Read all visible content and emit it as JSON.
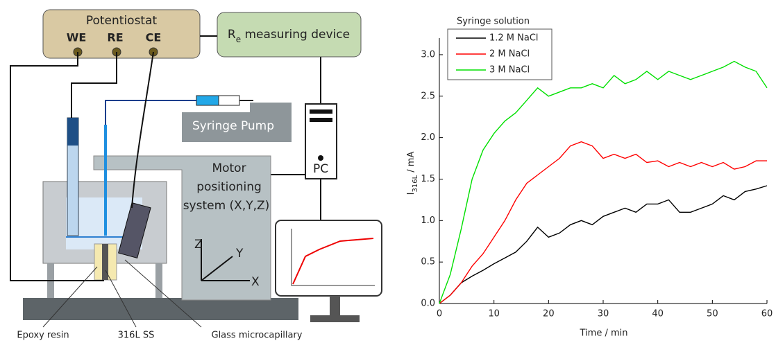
{
  "diagram": {
    "potentiostat": {
      "title": "Potentiostat",
      "terminals": [
        "WE",
        "RE",
        "CE"
      ]
    },
    "re_device": {
      "symbol": "R",
      "subscript": "e",
      "rest": " measuring device"
    },
    "syringe_pump": "Syringe Pump",
    "motor": [
      "Motor",
      "positioning",
      "system (X,Y,Z)"
    ],
    "pc": "PC",
    "axes": [
      "Z",
      "Y",
      "X"
    ],
    "callouts": [
      "Epoxy resin",
      "316L SS",
      "Glass microcapillary"
    ]
  },
  "chart_data": {
    "type": "line",
    "x_label": "Time / min",
    "y_label": {
      "main": "I",
      "subscript": "316L",
      "unit": " / mA"
    },
    "legend_title": "Syringe solution",
    "legend": "upper-left",
    "x": [
      0,
      2,
      4,
      6,
      8,
      10,
      12,
      14,
      16,
      18,
      20,
      22,
      24,
      26,
      28,
      30,
      32,
      34,
      36,
      38,
      40,
      42,
      44,
      46,
      48,
      50,
      52,
      54,
      56,
      58,
      60
    ],
    "series": [
      {
        "name": "1.2 M NaCl",
        "color": "#000000",
        "values": [
          0,
          0.1,
          0.25,
          0.33,
          0.4,
          0.48,
          0.55,
          0.62,
          0.75,
          0.92,
          0.8,
          0.85,
          0.95,
          1.0,
          0.95,
          1.05,
          1.1,
          1.15,
          1.1,
          1.2,
          1.2,
          1.25,
          1.1,
          1.1,
          1.15,
          1.2,
          1.3,
          1.25,
          1.35,
          1.38,
          1.42
        ]
      },
      {
        "name": "2 M NaCl",
        "color": "#ff0000",
        "values": [
          0,
          0.1,
          0.25,
          0.45,
          0.6,
          0.8,
          1.0,
          1.25,
          1.45,
          1.55,
          1.65,
          1.75,
          1.9,
          1.95,
          1.9,
          1.75,
          1.8,
          1.75,
          1.8,
          1.7,
          1.72,
          1.65,
          1.7,
          1.65,
          1.7,
          1.65,
          1.7,
          1.62,
          1.65,
          1.72,
          1.72
        ]
      },
      {
        "name": "3 M NaCl",
        "color": "#00e000",
        "values": [
          0,
          0.35,
          0.9,
          1.5,
          1.85,
          2.05,
          2.2,
          2.3,
          2.45,
          2.6,
          2.5,
          2.55,
          2.6,
          2.6,
          2.65,
          2.6,
          2.75,
          2.65,
          2.7,
          2.8,
          2.7,
          2.8,
          2.75,
          2.7,
          2.75,
          2.8,
          2.85,
          2.92,
          2.85,
          2.8,
          2.6
        ]
      }
    ],
    "xlim": [
      0,
      60
    ],
    "xticks": [
      0,
      10,
      20,
      30,
      40,
      50,
      60
    ],
    "ylim": [
      0,
      3.2
    ],
    "yticks": [
      {
        "value": 0,
        "label": "0.0"
      },
      0.5,
      {
        "value": 1,
        "label": "1.0"
      },
      1.5,
      {
        "value": 2,
        "label": "2.0"
      },
      2.5,
      {
        "value": 3,
        "label": "3.0"
      }
    ]
  }
}
